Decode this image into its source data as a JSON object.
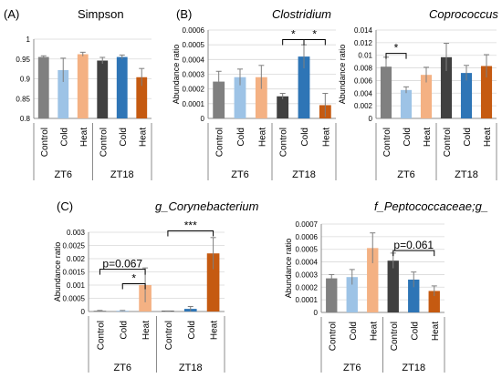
{
  "figure": {
    "panel_labels": [
      "(A)",
      "(B)",
      "(C)"
    ],
    "colors": {
      "control6": "#808080",
      "cold6": "#9dc3e6",
      "heat6": "#f4b183",
      "control18": "#404040",
      "cold18": "#2e75b6",
      "heat18": "#c55a11"
    }
  },
  "chart_data": [
    {
      "type": "bar",
      "title": "Simpson",
      "ylabel": "",
      "ylim": [
        0.8,
        1.0
      ],
      "yticks": [
        "0.8",
        "0.85",
        "0.9",
        "0.95",
        "1"
      ],
      "categories": [
        "Control",
        "Cold",
        "Heat",
        "Control",
        "Cold",
        "Heat"
      ],
      "groups": [
        "ZT6",
        "ZT18"
      ],
      "values": [
        0.955,
        0.922,
        0.962,
        0.946,
        0.955,
        0.904
      ],
      "errors": [
        0.003,
        0.03,
        0.005,
        0.008,
        0.005,
        0.022
      ],
      "annotations": []
    },
    {
      "type": "bar",
      "title": "Clostridium",
      "ylabel": "Abundance ratio",
      "ylim": [
        0,
        0.0006
      ],
      "yticks": [
        "0",
        "0.0001",
        "0.0002",
        "0.0003",
        "0.0004",
        "0.0005",
        "0.0006"
      ],
      "categories": [
        "Control",
        "Cold",
        "Heat",
        "Control",
        "Cold",
        "Heat"
      ],
      "groups": [
        "ZT6",
        "ZT18"
      ],
      "values": [
        0.00025,
        0.00028,
        0.00028,
        0.00015,
        0.00042,
        9e-05
      ],
      "errors": [
        7e-05,
        5.5e-05,
        8e-05,
        2e-05,
        8e-05,
        8e-05
      ],
      "annotations": [
        {
          "text": "*",
          "from": 3,
          "to": 4
        },
        {
          "text": "*",
          "from": 4,
          "to": 5
        }
      ]
    },
    {
      "type": "bar",
      "title": "Coprococcus",
      "ylabel": "Abundance ratio",
      "ylim": [
        0,
        0.014
      ],
      "yticks": [
        "0",
        "0.002",
        "0.004",
        "0.006",
        "0.008",
        "0.01",
        "0.012",
        "0.014"
      ],
      "categories": [
        "Control",
        "Cold",
        "Heat",
        "Control",
        "Cold",
        "Heat"
      ],
      "groups": [
        "ZT6",
        "ZT18"
      ],
      "values": [
        0.0082,
        0.0045,
        0.0069,
        0.0097,
        0.0072,
        0.0083
      ],
      "errors": [
        0.0015,
        0.0005,
        0.0012,
        0.0022,
        0.0012,
        0.0018
      ],
      "annotations": [
        {
          "text": "*",
          "from": 0,
          "to": 1
        }
      ]
    },
    {
      "type": "bar",
      "title": "g_Corynebacterium",
      "ylabel": "Abundance ratio",
      "ylim": [
        0,
        0.003
      ],
      "yticks": [
        "0",
        "0.0005",
        "0.001",
        "0.0015",
        "0.002",
        "0.0025",
        "0.003"
      ],
      "categories": [
        "Control",
        "Cold",
        "Heat",
        "Control",
        "Cold",
        "Heat"
      ],
      "groups": [
        "ZT6",
        "ZT18"
      ],
      "values": [
        3e-05,
        3e-05,
        0.001,
        1e-05,
        0.0001,
        0.0022
      ],
      "errors": [
        1e-05,
        1e-05,
        0.00065,
        1e-05,
        9e-05,
        0.0006
      ],
      "annotations": [
        {
          "text": "p=0.067",
          "from": 0,
          "to": 2
        },
        {
          "text": "*",
          "from": 1,
          "to": 2
        },
        {
          "text": "***",
          "from": 3,
          "to": 5
        }
      ]
    },
    {
      "type": "bar",
      "title": "f_Peptococcaceae;g_",
      "ylabel": "Abundance ratio",
      "ylim": [
        0,
        0.0007
      ],
      "yticks": [
        "0",
        "0.0001",
        "0.0002",
        "0.0003",
        "0.0004",
        "0.0005",
        "0.0006",
        "0.0007"
      ],
      "categories": [
        "Control",
        "Cold",
        "Heat",
        "Control",
        "Cold",
        "Heat"
      ],
      "groups": [
        "ZT6",
        "ZT18"
      ],
      "values": [
        0.00027,
        0.00028,
        0.00051,
        0.00041,
        0.00026,
        0.00017
      ],
      "errors": [
        3e-05,
        6e-05,
        0.00012,
        6e-05,
        6e-05,
        4e-05
      ],
      "annotations": [
        {
          "text": "p=0.061",
          "from": 3,
          "to": 5
        }
      ]
    }
  ]
}
